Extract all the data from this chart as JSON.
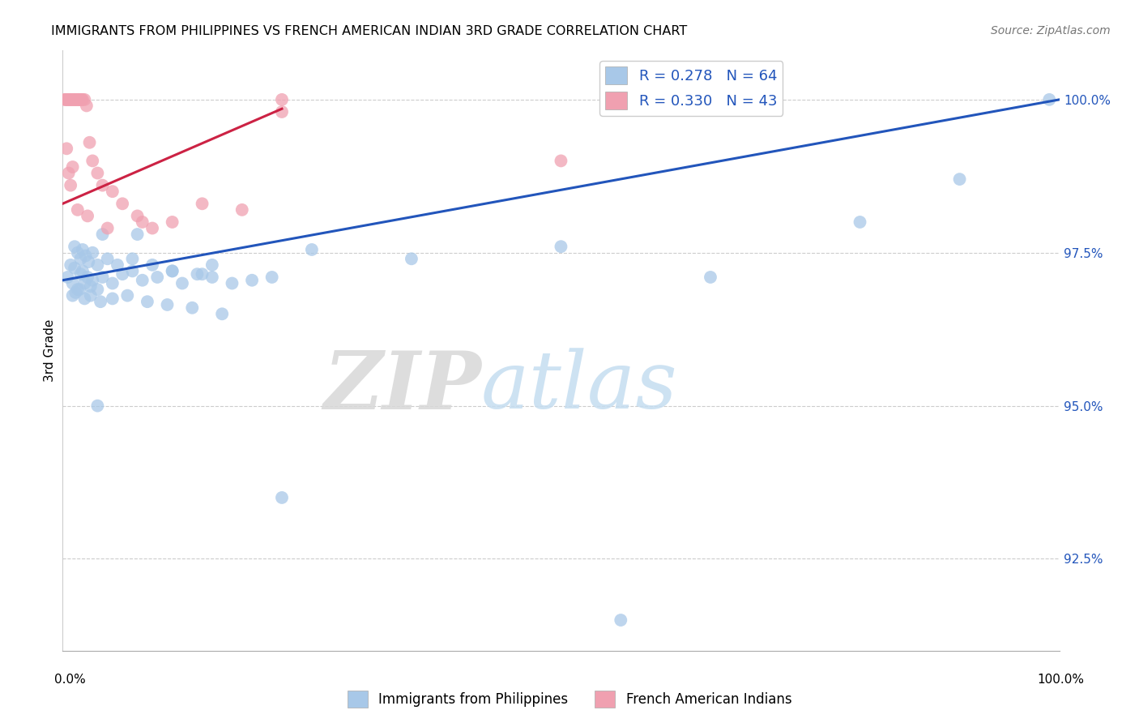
{
  "title": "IMMIGRANTS FROM PHILIPPINES VS FRENCH AMERICAN INDIAN 3RD GRADE CORRELATION CHART",
  "source": "Source: ZipAtlas.com",
  "ylabel": "3rd Grade",
  "yticks": [
    92.5,
    95.0,
    97.5,
    100.0
  ],
  "ytick_labels": [
    "92.5%",
    "95.0%",
    "97.5%",
    "100.0%"
  ],
  "xmin": 0.0,
  "xmax": 100.0,
  "ymin": 91.0,
  "ymax": 100.8,
  "blue_color": "#a8c8e8",
  "pink_color": "#f0a0b0",
  "blue_line_color": "#2255bb",
  "pink_line_color": "#cc2244",
  "legend_blue_label_r": "R = 0.278",
  "legend_blue_label_n": "N = 64",
  "legend_pink_label_r": "R = 0.330",
  "legend_pink_label_n": "N = 43",
  "legend_bottom_blue": "Immigrants from Philippines",
  "legend_bottom_pink": "French American Indians",
  "watermark_zip": "ZIP",
  "watermark_atlas": "atlas",
  "blue_line_x": [
    0,
    100
  ],
  "blue_line_y": [
    97.05,
    100.0
  ],
  "pink_line_x": [
    0,
    22
  ],
  "pink_line_y": [
    98.3,
    99.85
  ],
  "blue_scatter_x": [
    0.5,
    0.8,
    1.0,
    1.2,
    1.5,
    1.8,
    2.0,
    2.2,
    2.5,
    2.8,
    3.0,
    3.5,
    4.0,
    5.0,
    6.0,
    7.0,
    8.0,
    9.5,
    11.0,
    12.0,
    13.5,
    15.0,
    17.0,
    19.0,
    21.0,
    1.2,
    1.5,
    1.8,
    2.0,
    2.3,
    2.6,
    3.0,
    3.5,
    4.5,
    5.5,
    7.0,
    9.0,
    11.0,
    14.0,
    1.0,
    1.3,
    1.7,
    2.2,
    2.8,
    3.8,
    5.0,
    6.5,
    8.5,
    10.5,
    13.0,
    16.0,
    4.0,
    7.5,
    15.0,
    25.0,
    35.0,
    50.0,
    65.0,
    80.0,
    90.0,
    99.0,
    3.5,
    22.0,
    56.0
  ],
  "blue_scatter_y": [
    97.1,
    97.3,
    97.0,
    97.25,
    96.9,
    97.15,
    97.2,
    97.0,
    97.1,
    96.95,
    97.05,
    96.9,
    97.1,
    97.0,
    97.15,
    97.2,
    97.05,
    97.1,
    97.2,
    97.0,
    97.15,
    97.1,
    97.0,
    97.05,
    97.1,
    97.6,
    97.5,
    97.4,
    97.55,
    97.45,
    97.35,
    97.5,
    97.3,
    97.4,
    97.3,
    97.4,
    97.3,
    97.2,
    97.15,
    96.8,
    96.85,
    96.9,
    96.75,
    96.8,
    96.7,
    96.75,
    96.8,
    96.7,
    96.65,
    96.6,
    96.5,
    97.8,
    97.8,
    97.3,
    97.55,
    97.4,
    97.6,
    97.1,
    98.0,
    98.7,
    100.0,
    95.0,
    93.5,
    91.5
  ],
  "pink_scatter_x": [
    0.2,
    0.3,
    0.4,
    0.5,
    0.6,
    0.7,
    0.8,
    0.9,
    1.0,
    1.1,
    1.2,
    1.3,
    1.4,
    1.5,
    1.6,
    1.7,
    1.8,
    1.9,
    2.0,
    2.2,
    2.4,
    2.7,
    3.0,
    3.5,
    4.0,
    5.0,
    6.0,
    7.5,
    9.0,
    11.0,
    14.0,
    18.0,
    22.0,
    0.4,
    0.6,
    0.8,
    1.0,
    1.5,
    2.5,
    4.5,
    8.0,
    22.0,
    50.0
  ],
  "pink_scatter_y": [
    100.0,
    100.0,
    100.0,
    100.0,
    100.0,
    100.0,
    100.0,
    100.0,
    100.0,
    100.0,
    100.0,
    100.0,
    100.0,
    100.0,
    100.0,
    100.0,
    100.0,
    100.0,
    100.0,
    100.0,
    99.9,
    99.3,
    99.0,
    98.8,
    98.6,
    98.5,
    98.3,
    98.1,
    97.9,
    98.0,
    98.3,
    98.2,
    100.0,
    99.2,
    98.8,
    98.6,
    98.9,
    98.2,
    98.1,
    97.9,
    98.0,
    99.8,
    99.0
  ]
}
